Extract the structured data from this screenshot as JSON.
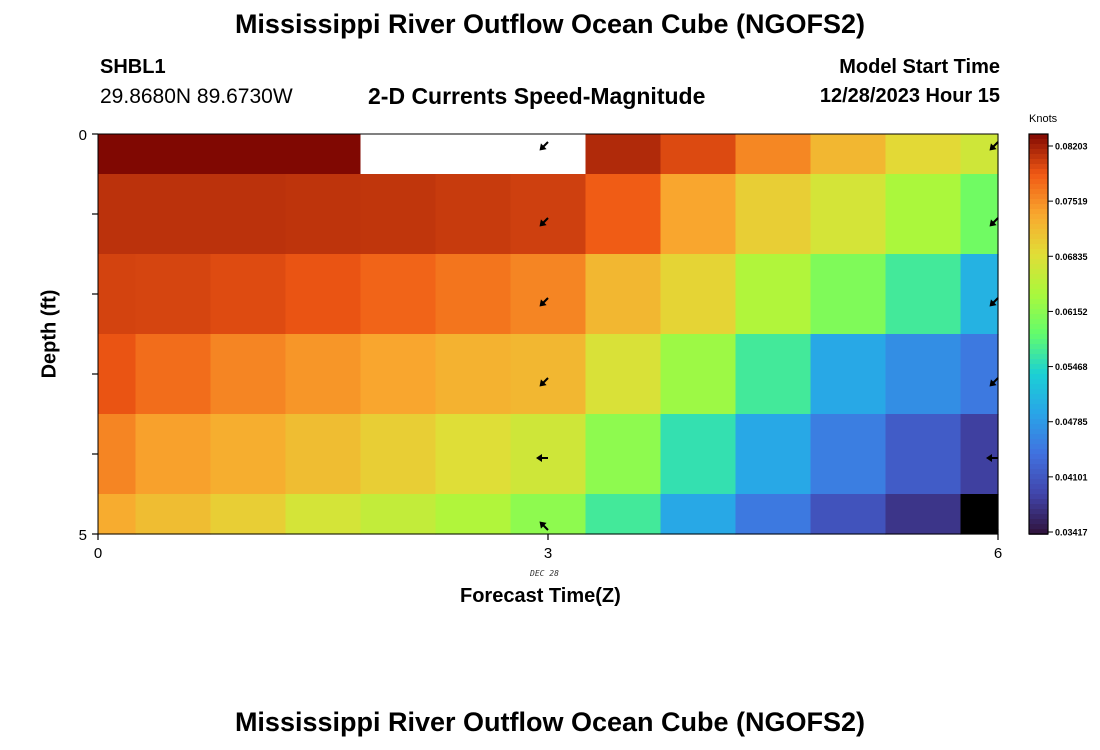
{
  "header": {
    "title": "Mississippi River Outflow Ocean Cube (NGOFS2)",
    "station": "SHBL1",
    "coords": "29.8680N  89.6730W",
    "subtitle": "2-D Currents Speed-Magnitude",
    "model_start_label": "Model Start Time",
    "model_start_value": "12/28/2023 Hour 15"
  },
  "footer": {
    "title": "Mississippi River Outflow Ocean Cube (NGOFS2)"
  },
  "chart_data": {
    "type": "heatmap",
    "title": "2-D Currents Speed-Magnitude",
    "xlabel": "Forecast Time(Z)",
    "ylabel": "Depth (ft)",
    "xlim": [
      0,
      6
    ],
    "ylim": [
      0,
      5
    ],
    "x_ticks": [
      "0",
      "3",
      "6"
    ],
    "y_ticks": [
      "0",
      "5"
    ],
    "date_label": "DEC 28",
    "colorbar": {
      "label": "Knots",
      "ticks": [
        "0.08203",
        "0.07519",
        "0.06835",
        "0.06152",
        "0.05468",
        "0.04785",
        "0.04101",
        "0.03417"
      ],
      "range": [
        0.03417,
        0.08203
      ]
    },
    "x_edges": [
      0,
      0.25,
      0.75,
      1.25,
      1.75,
      2.25,
      2.75,
      3.25,
      3.75,
      4.25,
      4.75,
      5.25,
      5.75,
      6
    ],
    "y_edges": [
      0,
      0.5,
      1.5,
      2.5,
      3.5,
      4.5,
      5
    ],
    "values": [
      [
        0.0822,
        0.0823,
        0.0823,
        0.0822,
        null,
        null,
        null,
        0.08,
        0.0781,
        0.0744,
        0.071,
        0.068,
        0.066
      ],
      [
        0.0795,
        0.0795,
        0.0795,
        0.0794,
        0.0793,
        0.079,
        0.0787,
        0.077,
        0.0725,
        0.069,
        0.0665,
        0.063,
        0.059
      ],
      [
        0.0785,
        0.0784,
        0.078,
        0.0775,
        0.0765,
        0.0755,
        0.0745,
        0.071,
        0.0685,
        0.0635,
        0.06,
        0.056,
        0.05
      ],
      [
        0.0775,
        0.076,
        0.0745,
        0.0735,
        0.0725,
        0.0715,
        0.071,
        0.067,
        0.062,
        0.056,
        0.049,
        0.0465,
        0.0445
      ],
      [
        0.0745,
        0.0728,
        0.0718,
        0.0705,
        0.069,
        0.0675,
        0.066,
        0.061,
        0.055,
        0.049,
        0.045,
        0.0415,
        0.0385
      ],
      [
        0.072,
        0.0705,
        0.069,
        0.0665,
        0.065,
        0.0635,
        0.061,
        0.056,
        0.049,
        0.0445,
        0.0405,
        0.0375,
        0.032
      ]
    ],
    "arrow_columns": [
      3,
      6
    ],
    "arrow_depths": [
      0,
      1,
      2,
      3,
      4,
      5
    ]
  }
}
